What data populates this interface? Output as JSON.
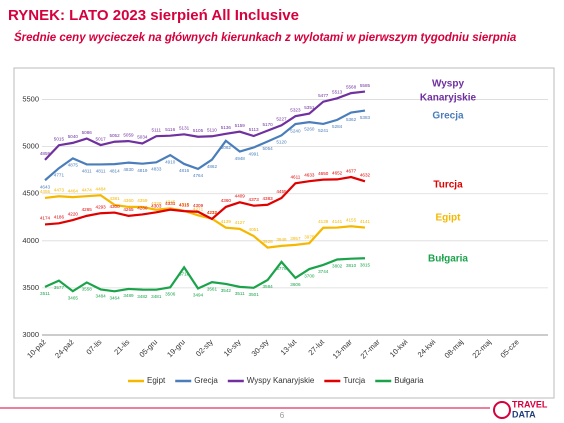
{
  "chart_data": {
    "type": "line",
    "title": "RYNEK: LATO 2023 sierpień All Inclusive",
    "subtitle": "Średnie ceny wycieczek na głównych kierunkach z wylotami w pierwszym tygodniu sierpnia",
    "page_number": "6",
    "logo": [
      "TRAVEL",
      "DATA"
    ],
    "categories": [
      "10-paź",
      null,
      "24-paź",
      null,
      "07-lis",
      null,
      "21-lis",
      null,
      "05-gru",
      null,
      "19-gru",
      null,
      "02-sty",
      null,
      "16-sty",
      null,
      "30-sty",
      null,
      "13-lut",
      null,
      "27-lut",
      null,
      "13-mar",
      null,
      "27-mar",
      null,
      "10-kwi",
      null,
      "24-kwi",
      null,
      "08-maj",
      null,
      "22-maj",
      null,
      "05-cze"
    ],
    "ylim": [
      3000,
      5750
    ],
    "yticks": [
      3000,
      3500,
      4000,
      4500,
      5000,
      5500
    ],
    "grid": true,
    "legend": "bottom",
    "series": [
      {
        "name": "Egipt",
        "color": "#f5b800",
        "label_pos": "above",
        "values": [
          4455,
          4473,
          4464,
          4474,
          4484,
          4381,
          4360,
          4359,
          4330,
          4345,
          4319,
          4271,
          4235,
          4139,
          4127,
          4051,
          3928,
          3946,
          3957,
          3975,
          4139,
          4141,
          4155,
          4141,
          null,
          null,
          null,
          null,
          null,
          null,
          null,
          null,
          null,
          null,
          null
        ]
      },
      {
        "name": "Grecja",
        "color": "#4a7ebb",
        "label_pos": "below",
        "values": [
          4643,
          4771,
          4875,
          4811,
          4811,
          4814,
          4830,
          4819,
          4833,
          4910,
          4816,
          4764,
          4862,
          5062,
          4948,
          4991,
          5054,
          5120,
          5240,
          5260,
          5241,
          5284,
          5362,
          5383,
          null,
          null,
          null,
          null,
          null,
          null,
          null,
          null,
          null,
          null,
          null
        ]
      },
      {
        "name": "Wyspy Kanaryjskie",
        "color": "#7030a0",
        "label_pos": "above",
        "values": [
          4859,
          5015,
          5040,
          5086,
          5017,
          5052,
          5059,
          5034,
          5111,
          5116,
          5131,
          5105,
          5110,
          5136,
          5159,
          5113,
          5170,
          5227,
          5323,
          5351,
          5477,
          5513,
          5568,
          5585,
          null,
          null,
          null,
          null,
          null,
          null,
          null,
          null,
          null,
          null,
          null
        ]
      },
      {
        "name": "Turcja",
        "color": "#e00000",
        "label_pos": "above",
        "values": [
          4174,
          4186,
          4220,
          4265,
          4293,
          4300,
          4265,
          4280,
          4303,
          4331,
          4315,
          4309,
          4232,
          4360,
          4409,
          4373,
          4383,
          4455,
          4611,
          4633,
          4650,
          4652,
          4677,
          4632,
          null,
          null,
          null,
          null,
          null,
          null,
          null,
          null,
          null,
          null,
          null
        ]
      },
      {
        "name": "Bułgaria",
        "color": "#1aa34a",
        "label_pos": "below",
        "values": [
          3511,
          3577,
          3465,
          3558,
          3484,
          3464,
          3489,
          3482,
          3481,
          3506,
          3718,
          3494,
          3561,
          3542,
          3511,
          3501,
          3584,
          3776,
          3606,
          3700,
          3744,
          3802,
          3810,
          3815,
          null,
          null,
          null,
          null,
          null,
          null,
          null,
          null,
          null,
          null,
          null
        ]
      }
    ],
    "annotations": [
      {
        "lines": [
          "Wyspy",
          "Kanaryjskie"
        ],
        "series": 2
      },
      {
        "lines": [
          "Grecja"
        ],
        "series": 1
      },
      {
        "lines": [
          "Turcja"
        ],
        "series": 3
      },
      {
        "lines": [
          "Egipt"
        ],
        "series": 0
      },
      {
        "lines": [
          "Bułgaria"
        ],
        "series": 4
      }
    ]
  }
}
